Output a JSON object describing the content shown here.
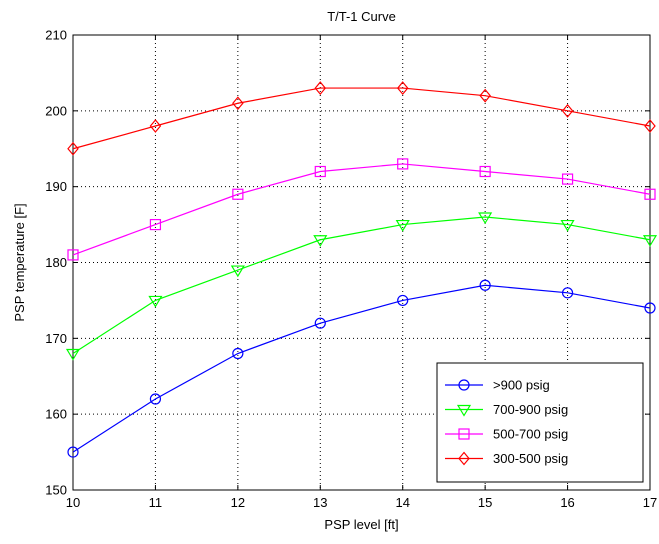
{
  "chart_data": {
    "type": "line",
    "title": "T/T-1 Curve",
    "xlabel": "PSP level [ft]",
    "ylabel": "PSP temperature [F]",
    "x": [
      10,
      11,
      12,
      13,
      14,
      15,
      16,
      17
    ],
    "xlim": [
      10,
      17
    ],
    "ylim": [
      150,
      210
    ],
    "xticks": [
      "10",
      "11",
      "12",
      "13",
      "14",
      "15",
      "16",
      "17"
    ],
    "yticks": [
      "150",
      "160",
      "170",
      "180",
      "190",
      "200",
      "210"
    ],
    "grid": true,
    "grid_style": "dotted",
    "legend_position": "bottom-right",
    "series": [
      {
        "name": ">900 psig",
        "color": "#0000ff",
        "marker": "circle",
        "values": [
          155,
          162,
          168,
          172,
          175,
          177,
          176,
          174
        ]
      },
      {
        "name": "700-900 psig",
        "color": "#00ff00",
        "marker": "triangle-down",
        "values": [
          168,
          175,
          179,
          183,
          185,
          186,
          185,
          183
        ]
      },
      {
        "name": "500-700 psig",
        "color": "#ff00ff",
        "marker": "square",
        "values": [
          181,
          185,
          189,
          192,
          193,
          192,
          191,
          189
        ]
      },
      {
        "name": "300-500 psig",
        "color": "#ff0000",
        "marker": "diamond",
        "values": [
          195,
          198,
          201,
          203,
          203,
          202,
          200,
          198
        ]
      }
    ]
  }
}
